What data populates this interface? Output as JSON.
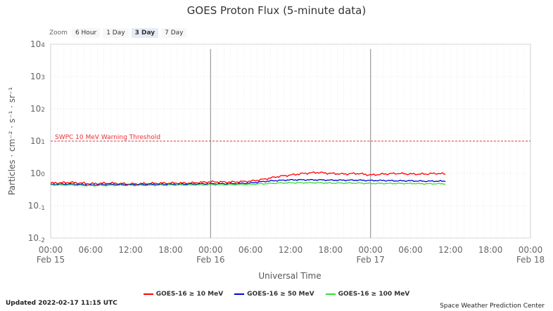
{
  "zoom": {
    "label": "Zoom",
    "options": [
      "6 Hour",
      "1 Day",
      "3 Day",
      "7 Day"
    ],
    "active": "3 Day"
  },
  "footer": {
    "updated": "Updated 2022-02-17 11:15 UTC",
    "credit": "Space Weather Prediction Center"
  },
  "chart_data": {
    "type": "line",
    "title": "GOES Proton Flux (5-minute data)",
    "xlabel": "Universal Time",
    "ylabel": "Particles · cm⁻² · s⁻¹ · sr⁻¹",
    "y_scale": "log",
    "ylim_exp": [
      -2,
      4
    ],
    "y_ticks": [
      {
        "exp": 4,
        "base": "10",
        "sup": "4"
      },
      {
        "exp": 3,
        "base": "10",
        "sup": "3"
      },
      {
        "exp": 2,
        "base": "10",
        "sup": "2"
      },
      {
        "exp": 1,
        "base": "10",
        "sup": "1"
      },
      {
        "exp": 0,
        "base": "10",
        "sup": "0"
      },
      {
        "exp": -1,
        "base": "10",
        "sup": "-1"
      },
      {
        "exp": -2,
        "base": "10",
        "sup": "-2"
      }
    ],
    "x_range_hours": [
      0,
      72
    ],
    "x_ticks": [
      {
        "h": 0,
        "time": "00:00",
        "date": "Feb 15"
      },
      {
        "h": 6,
        "time": "06:00",
        "date": ""
      },
      {
        "h": 12,
        "time": "12:00",
        "date": ""
      },
      {
        "h": 18,
        "time": "18:00",
        "date": ""
      },
      {
        "h": 24,
        "time": "00:00",
        "date": "Feb 16"
      },
      {
        "h": 30,
        "time": "06:00",
        "date": ""
      },
      {
        "h": 36,
        "time": "12:00",
        "date": ""
      },
      {
        "h": 42,
        "time": "18:00",
        "date": ""
      },
      {
        "h": 48,
        "time": "00:00",
        "date": "Feb 17"
      },
      {
        "h": 54,
        "time": "06:00",
        "date": ""
      },
      {
        "h": 60,
        "time": "12:00",
        "date": ""
      },
      {
        "h": 66,
        "time": "18:00",
        "date": ""
      },
      {
        "h": 72,
        "time": "00:00",
        "date": "Feb 18"
      }
    ],
    "day_boundaries_hours": [
      24,
      48
    ],
    "threshold": {
      "label": "SWPC 10 MeV Warning Threshold",
      "exp": 1,
      "color": "#e8303a"
    },
    "series": [
      {
        "name": "GOES-16 ≥ 10 MeV",
        "color": "#ff0000",
        "x": [
          0,
          3,
          6,
          9,
          12,
          15,
          18,
          21,
          24,
          27,
          30,
          32,
          34,
          36,
          38,
          40,
          42,
          44,
          46,
          48,
          50,
          52,
          54,
          56,
          58,
          59.3
        ],
        "log_values": [
          -0.3,
          -0.28,
          -0.32,
          -0.3,
          -0.33,
          -0.31,
          -0.3,
          -0.3,
          -0.26,
          -0.27,
          -0.24,
          -0.18,
          -0.1,
          -0.05,
          0.0,
          0.03,
          0.0,
          -0.02,
          0.0,
          -0.05,
          -0.02,
          0.0,
          -0.02,
          -0.02,
          0.0,
          -0.02
        ]
      },
      {
        "name": "GOES-16 ≥ 50 MeV",
        "color": "#0000dd",
        "x": [
          0,
          3,
          6,
          9,
          12,
          15,
          18,
          21,
          24,
          27,
          30,
          32,
          34,
          36,
          38,
          40,
          42,
          44,
          46,
          48,
          50,
          52,
          54,
          56,
          58,
          59.3
        ],
        "log_values": [
          -0.34,
          -0.33,
          -0.36,
          -0.34,
          -0.35,
          -0.34,
          -0.34,
          -0.33,
          -0.32,
          -0.32,
          -0.3,
          -0.25,
          -0.22,
          -0.2,
          -0.2,
          -0.2,
          -0.21,
          -0.21,
          -0.21,
          -0.22,
          -0.22,
          -0.23,
          -0.23,
          -0.24,
          -0.24,
          -0.24
        ]
      },
      {
        "name": "GOES-16 ≥ 100 MeV",
        "color": "#33dd33",
        "x": [
          0,
          3,
          6,
          9,
          12,
          15,
          18,
          21,
          24,
          27,
          30,
          32,
          34,
          36,
          38,
          40,
          42,
          44,
          46,
          48,
          50,
          52,
          54,
          56,
          58,
          59.3
        ],
        "log_values": [
          -0.36,
          -0.36,
          -0.38,
          -0.37,
          -0.37,
          -0.37,
          -0.36,
          -0.36,
          -0.35,
          -0.35,
          -0.34,
          -0.32,
          -0.3,
          -0.29,
          -0.29,
          -0.29,
          -0.3,
          -0.3,
          -0.3,
          -0.31,
          -0.31,
          -0.31,
          -0.31,
          -0.32,
          -0.32,
          -0.32
        ]
      }
    ]
  }
}
